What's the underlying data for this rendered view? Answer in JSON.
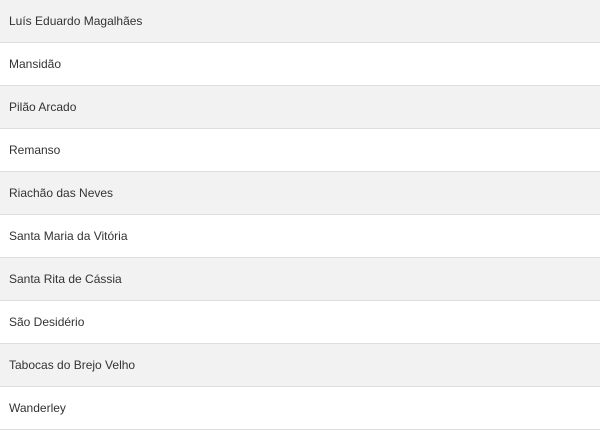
{
  "list": {
    "items": [
      "Luís Eduardo Magalhães",
      "Mansidão",
      "Pilão Arcado",
      "Remanso",
      "Riachão das Neves",
      "Santa Maria da Vitória",
      "Santa Rita de Cássia",
      "São Desidério",
      "Tabocas do Brejo Velho",
      "Wanderley"
    ]
  },
  "colors": {
    "stripe": "#f2f2f2",
    "text": "#333333",
    "divider": "#dedede"
  }
}
